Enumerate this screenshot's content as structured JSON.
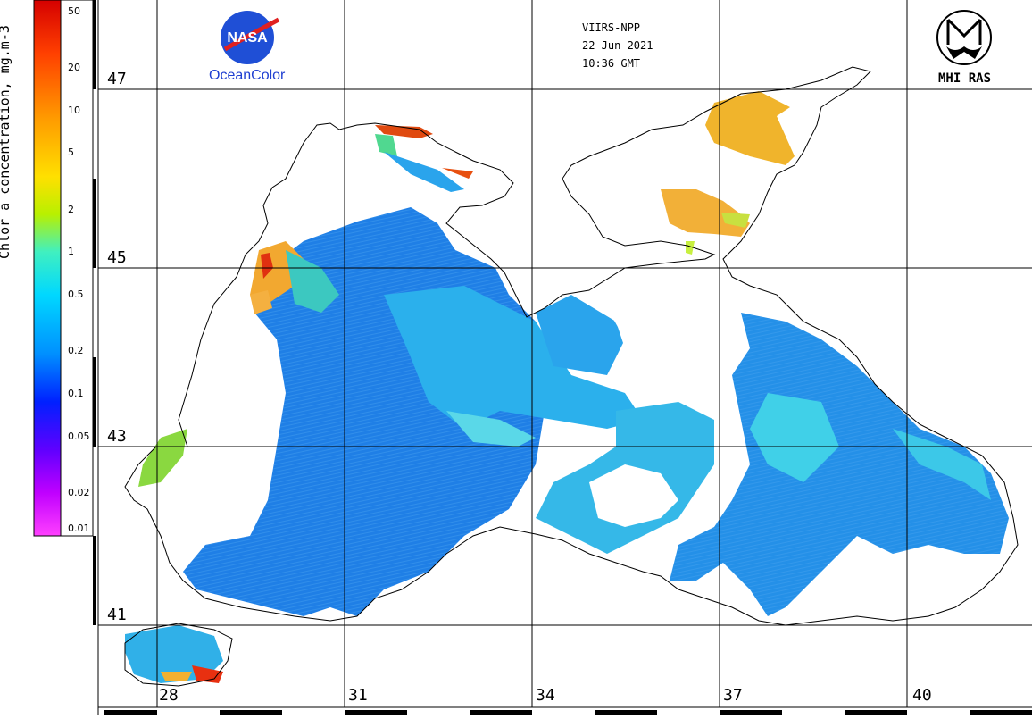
{
  "header": {
    "sensor": "VIIRS-NPP",
    "date": "22 Jun 2021",
    "time": "10:36 GMT"
  },
  "logos": {
    "nasa_text": "NASA",
    "oceancolor": "OceanColor",
    "mhi": "MHI RAS"
  },
  "colorbar": {
    "label": "Chlor_a concentration, mg.m-3",
    "ticks": [
      "50",
      "20",
      "10",
      "5",
      "2",
      "1",
      "0.5",
      "0.2",
      "0.1",
      "0.05",
      "0.02",
      "0.01"
    ],
    "colors": [
      "#d50000",
      "#ff4000",
      "#ff8c00",
      "#ffd000",
      "#c8f000",
      "#40f0c0",
      "#00d8ff",
      "#0090ff",
      "#0020ff",
      "#6000ff",
      "#c000ff",
      "#ff40ff"
    ]
  },
  "grid": {
    "latitudes": [
      "47",
      "45",
      "43",
      "41"
    ],
    "longitudes": [
      "28",
      "31",
      "34",
      "37",
      "40"
    ]
  },
  "colors": {
    "low": "#1e7fe8",
    "mid": "#22c8e8",
    "high": "#f2a020",
    "very_high": "#e03010",
    "coast": "#000000"
  }
}
